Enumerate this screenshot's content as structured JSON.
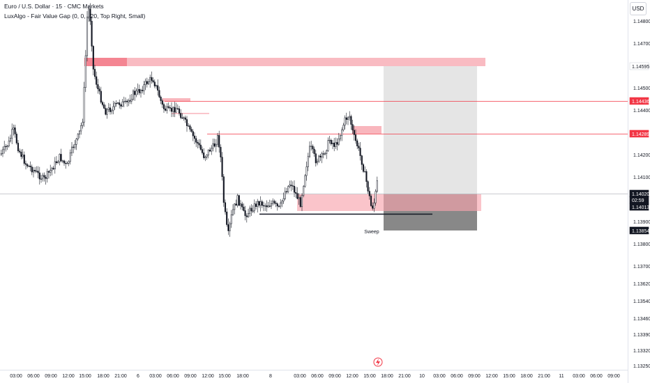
{
  "header": {
    "symbol_line": "Euro / U.S. Dollar · 15 · CMC Markets",
    "indicator_line": "LuxAlgo - Fair Value Gap (0, 0, , 20, Top Right, Small)"
  },
  "currency_button": "USD",
  "price_axis": {
    "ticks": [
      "1.14800",
      "1.14700",
      "1.14500",
      "1.14400",
      "1.14200",
      "1.14100",
      "1.13900",
      "1.13800",
      "1.13700",
      "1.13620",
      "1.13540",
      "1.13460",
      "1.13390",
      "1.13320",
      "1.13250"
    ],
    "badges": [
      {
        "label": "1.14595",
        "bg": "#ffffff",
        "fg": "#131722",
        "border": "#d1d4dc"
      },
      {
        "label": "1.14436",
        "bg": "#f23645",
        "fg": "#ffffff",
        "border": "#f23645"
      },
      {
        "label": "1.14289",
        "bg": "#f23645",
        "fg": "#ffffff",
        "border": "#f23645"
      },
      {
        "label": "1.14020",
        "bg": "#131722",
        "fg": "#ffffff",
        "border": "#131722"
      },
      {
        "label": "02:59",
        "bg": "#131722",
        "fg": "#ffffff",
        "border": "#131722"
      },
      {
        "label": "1.14013",
        "bg": "#131722",
        "fg": "#ffffff",
        "border": "#131722"
      },
      {
        "label": "1.13854",
        "bg": "#131722",
        "fg": "#ffffff",
        "border": "#131722"
      }
    ]
  },
  "time_axis": {
    "ticks": [
      "03:00",
      "06:00",
      "09:00",
      "12:00",
      "15:00",
      "18:00",
      "21:00",
      "6",
      "03:00",
      "06:00",
      "09:00",
      "12:00",
      "15:00",
      "18:00",
      "8",
      "03:00",
      "06:00",
      "09:00",
      "12:00",
      "15:00",
      "18:00",
      "21:00",
      "10",
      "03:00",
      "06:00",
      "09:00",
      "12:00",
      "15:00",
      "18:00",
      "21:00",
      "11",
      "03:00",
      "06:00",
      "09:00"
    ]
  },
  "annotations": {
    "sweep_label": "Sweep"
  },
  "icons": {
    "replay": "lightning-replay-icon"
  },
  "colors": {
    "bull": "#131722",
    "bear": "#131722",
    "fvg_zone": "#f7a4ad",
    "resistance_line": "#f23645",
    "target_zone": "#e0e0e0",
    "stop_zone": "#5a5a5a"
  }
}
